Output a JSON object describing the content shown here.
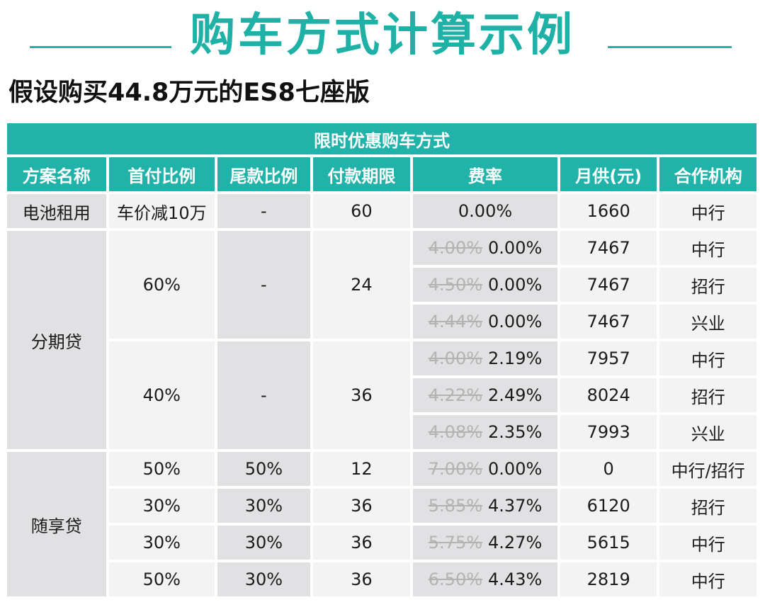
{
  "header": {
    "title": "购车方式计算示例",
    "subtitle": "假设购买44.8万元的ES8七座版"
  },
  "table": {
    "banner": "限时优惠购车方式",
    "columns": [
      "方案名称",
      "首付比例",
      "尾款比例",
      "付款期限",
      "费率",
      "月供(元)",
      "合作机构"
    ],
    "plans": {
      "battery": "电池租用",
      "installment": "分期贷",
      "suixiang": "随享贷"
    },
    "rows": [
      {
        "down": "车价减10万",
        "balloon": "-",
        "term": "60",
        "old_rate": "",
        "rate": "0.00%",
        "monthly": "1660",
        "org": "中行"
      },
      {
        "down": "60%",
        "balloon": "-",
        "term": "24",
        "old_rate": "4.00%",
        "rate": "0.00%",
        "monthly": "7467",
        "org": "中行"
      },
      {
        "old_rate": "4.50%",
        "rate": "0.00%",
        "monthly": "7467",
        "org": "招行"
      },
      {
        "old_rate": "4.44%",
        "rate": "0.00%",
        "monthly": "7467",
        "org": "兴业"
      },
      {
        "down": "40%",
        "balloon": "-",
        "term": "36",
        "old_rate": "4.00%",
        "rate": "2.19%",
        "monthly": "7957",
        "org": "中行"
      },
      {
        "old_rate": "4.22%",
        "rate": "2.49%",
        "monthly": "8024",
        "org": "招行"
      },
      {
        "old_rate": "4.08%",
        "rate": "2.35%",
        "monthly": "7993",
        "org": "兴业"
      },
      {
        "down": "50%",
        "balloon": "50%",
        "term": "12",
        "old_rate": "7.00%",
        "rate": "0.00%",
        "monthly": "0",
        "org": "中行/招行"
      },
      {
        "down": "30%",
        "balloon": "30%",
        "term": "36",
        "old_rate": "5.85%",
        "rate": "4.37%",
        "monthly": "6120",
        "org": "招行"
      },
      {
        "down": "30%",
        "balloon": "30%",
        "term": "36",
        "old_rate": "5.75%",
        "rate": "4.27%",
        "monthly": "5615",
        "org": "中行"
      },
      {
        "down": "50%",
        "balloon": "30%",
        "term": "36",
        "old_rate": "6.50%",
        "rate": "4.43%",
        "monthly": "2819",
        "org": "中行"
      }
    ]
  }
}
